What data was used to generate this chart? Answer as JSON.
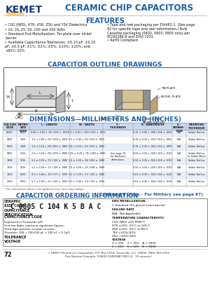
{
  "title": "CERAMIC CHIP CAPACITORS",
  "kemet_color": "#1a3a8c",
  "kemet_charged_color": "#f5a800",
  "header_blue": "#1a5fa8",
  "features_title": "FEATURES",
  "features_left": [
    "C0G (NP0), X7R, X5R, Z5U and Y5V Dielectrics",
    "10, 16, 25, 50, 100 and 200 Volts",
    "Standard End Metallization: Tin-plate over nickel barrier",
    "Available Capacitance Tolerances: ±0.10 pF; ±0.25 pF; ±0.5 pF; ±1%; ±2%; ±5%; ±10%; ±20%; and +80%–20%"
  ],
  "features_right": [
    "Tape and reel packaging per EIA481-1. (See page 82 for specific tape and reel information.) Bulk Cassette packaging (0402, 0603, 0805 only) per IEC60286-8 and EIA/J 7201.",
    "RoHS Compliant"
  ],
  "outline_title": "CAPACITOR OUTLINE DRAWINGS",
  "dimensions_title": "DIMENSIONS—MILLIMETERS AND (INCHES)",
  "ordering_title": "CAPACITOR ORDERING INFORMATION",
  "ordering_subtitle": "(Standard Chips - For Military see page 87)",
  "ordering_example": "C 0805 C 104 K 5 B A C",
  "dim_rows": [
    [
      "0201*",
      "0603",
      "0.60 ± 0.03 x .02 (.023 ± .001)",
      "0.3 ± 0.03 x .015 (.012 ± .001)",
      "",
      "0.15 ± 0.05 x .006 (.006 ± .002)",
      "N/A",
      "Solder Reflow"
    ],
    [
      "0402",
      "1005",
      "1.0 ± 0.05 x .04 (.039 ± .002)",
      "0.5 ± 0.05 x .02 (.020 ± .002)",
      "",
      "0.25 ± 0.15 x .010 (.010 ± .006)",
      "N/A",
      "Solder Reflow"
    ],
    [
      "0603",
      "1608",
      "1.6 ± 0.15 x .06 (.063 ± .006)",
      "0.8 ± 0.15 x .03 (.031 ± .006)",
      "",
      "0.35 ± 0.15 x .014 (.014 ± .006)",
      "N/A",
      "Solder Reflow"
    ],
    [
      "0805",
      "2012",
      "2.0 ± 0.20 x .08 (.079 ± .008)",
      "1.25 ± 0.20 x .05 (.049 ± .008)",
      "See page 75\nfor thickness\ndimensions",
      "0.50 ± 0.25 x .020 (.020 ± .010)",
      "N/A",
      "Solder Reflow\nor Solder Wave"
    ],
    [
      "1206",
      "3216",
      "3.2 ± 0.20 x .13 (.126 ± .008)",
      "1.6 ± 0.20 x .06 (.063 ± .008)",
      "",
      "0.50 ± 0.25 x .020 (.020 ± .010)",
      "N/A",
      "Solder Reflow"
    ],
    [
      "1210",
      "3225",
      "3.2 ± 0.20 x .13 (.126 ± .008)",
      "2.5 ± 0.20 x .10 (.098 ± .008)",
      "",
      "0.50 ± 0.25 x .020 (.020 ± .010)",
      "N/A",
      "Solder Reflow"
    ],
    [
      "1812",
      "4532",
      "4.5 ± 0.40 x .18 (.177 ± .016)",
      "3.2 ± 0.20 x .13 (.126 ± .008)",
      "",
      "0.61 ± 0.36 x .024 (.024 ± .014)",
      "N/A",
      "Solder Reflow"
    ],
    [
      "2220",
      "5750",
      "5.7 ± 0.40 x .22 (.224 ± .016)",
      "5.0 ± 0.40 x .20 (.197 ± .016)",
      "",
      "0.61 ± 0.36 x .024 (.024 ± .014)",
      "N/A",
      "Solder Reflow"
    ]
  ],
  "page_num": "72",
  "page_company": "© KEMET Electronics Corporation, P.O. Box 5928, Greenville, S.C. 29606, (864) 963-6300",
  "bg_color": "#ffffff",
  "table_header_bg": "#c8d8f0",
  "table_alt_bg": "#e8eef8"
}
